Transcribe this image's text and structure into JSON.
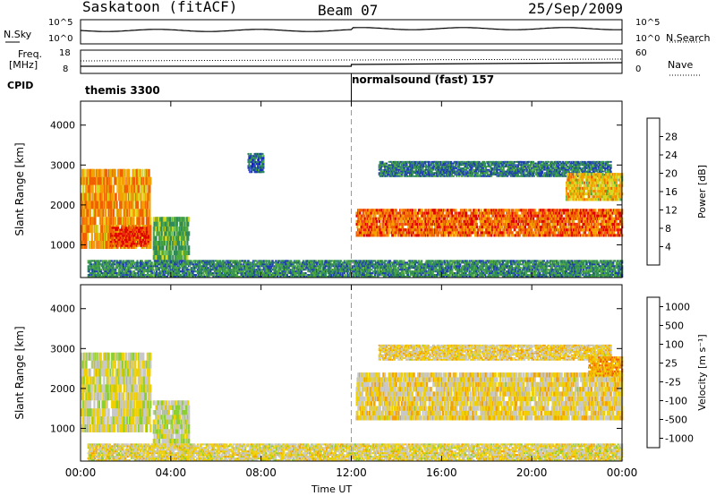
{
  "header": {
    "station": "Saskatoon (fitACF)",
    "beam": "Beam 07",
    "date": "25/Sep/2009"
  },
  "sky_panel": {
    "left_label": "N.Sky",
    "right_label": "N.Search",
    "left_ticks": [
      "10^5",
      "10^0"
    ],
    "right_ticks": [
      "10^5",
      "10^0"
    ]
  },
  "freq_panel": {
    "left_label_1": "Freq.",
    "left_label_2": "[MHz]",
    "right_label": "Nave",
    "left_ticks": [
      "18",
      "8"
    ],
    "right_ticks": [
      "60",
      "0"
    ]
  },
  "cpid": {
    "label": "CPID",
    "mode_1": "themis 3300",
    "mode_2": "normalsound (fast) 157"
  },
  "colors": {
    "scale": [
      "#1010e0",
      "#1e3cb4",
      "#2e8a5a",
      "#4faa3c",
      "#d8d820",
      "#f4a000",
      "#f06000",
      "#e00000"
    ],
    "velocity": [
      "#e00000",
      "#f06000",
      "#f4a000",
      "#f0d000",
      "#c8c8c8",
      "#8ccf30",
      "#2e8a5a",
      "#1e3cb4"
    ]
  },
  "chart_data": [
    {
      "type": "heatmap",
      "title": "Power",
      "ylabel": "Slant Range [km]",
      "colorbar_label": "Power [dB]",
      "colorbar_ticks": [
        "28",
        "24",
        "20",
        "16",
        "12",
        "8",
        "4"
      ],
      "yticks": [
        "4000",
        "3000",
        "2000",
        "1000"
      ],
      "ylim": [
        180,
        4600
      ],
      "xlim_hours": [
        0,
        24
      ],
      "bands": [
        {
          "t0": 0.0,
          "t1": 3.1,
          "r0": 900,
          "r1": 2900,
          "level": 0.75
        },
        {
          "t0": 1.3,
          "t1": 3.0,
          "r0": 950,
          "r1": 1450,
          "level": 0.95
        },
        {
          "t0": 3.2,
          "t1": 4.8,
          "r0": 500,
          "r1": 1700,
          "level": 0.4
        },
        {
          "t0": 7.4,
          "t1": 8.1,
          "r0": 2800,
          "r1": 3300,
          "level": 0.2
        },
        {
          "t0": 12.2,
          "t1": 24.0,
          "r0": 1200,
          "r1": 1900,
          "level": 0.85
        },
        {
          "t0": 13.2,
          "t1": 23.5,
          "r0": 2700,
          "r1": 3100,
          "level": 0.25
        },
        {
          "t0": 21.5,
          "t1": 24.0,
          "r0": 2100,
          "r1": 2800,
          "level": 0.65
        },
        {
          "t0": 0.3,
          "t1": 24.0,
          "r0": 180,
          "r1": 620,
          "level": 0.3
        }
      ]
    },
    {
      "type": "heatmap",
      "title": "Velocity",
      "ylabel": "Slant Range [km]",
      "colorbar_label": "Velocity [m s⁻¹]",
      "colorbar_ticks": [
        "1000",
        "500",
        "100",
        "25",
        "-25",
        "-100",
        "-500",
        "-1000"
      ],
      "yticks": [
        "4000",
        "3000",
        "2000",
        "1000"
      ],
      "ylim": [
        180,
        4600
      ],
      "xlim_hours": [
        0,
        24
      ],
      "bands": [
        {
          "t0": 0.0,
          "t1": 3.1,
          "r0": 900,
          "r1": 2900,
          "level": 0.55
        },
        {
          "t0": 3.2,
          "t1": 4.8,
          "r0": 500,
          "r1": 1700,
          "level": 0.6
        },
        {
          "t0": 12.2,
          "t1": 24.0,
          "r0": 1200,
          "r1": 2400,
          "level": 0.47
        },
        {
          "t0": 13.2,
          "t1": 23.5,
          "r0": 2700,
          "r1": 3100,
          "level": 0.47
        },
        {
          "t0": 22.5,
          "t1": 24.0,
          "r0": 2300,
          "r1": 2800,
          "level": 0.3
        },
        {
          "t0": 0.3,
          "t1": 24.0,
          "r0": 180,
          "r1": 620,
          "level": 0.5
        }
      ]
    }
  ],
  "xaxis": {
    "ticks": [
      "00:00",
      "04:00",
      "08:00",
      "12:00",
      "16:00",
      "20:00",
      "00:00"
    ],
    "label": "Time UT"
  }
}
